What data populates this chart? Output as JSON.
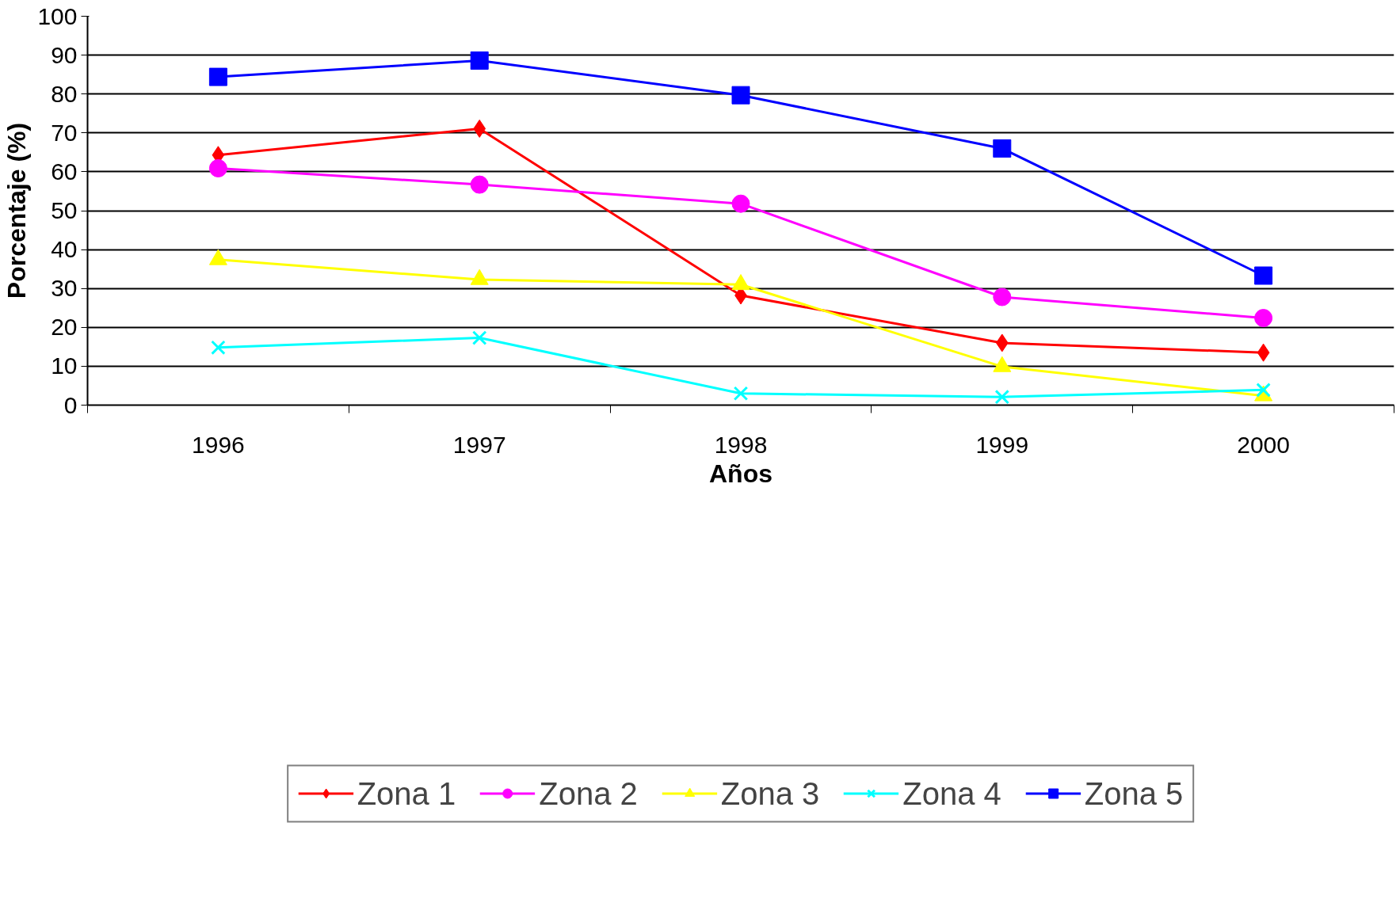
{
  "chart_data": {
    "type": "line",
    "xlabel": "Años",
    "ylabel": "Porcentaje (%)",
    "categories": [
      "1996",
      "1997",
      "1998",
      "1999",
      "2000"
    ],
    "series": [
      {
        "name": "Zona 1",
        "color": "#ff0000",
        "marker": "diamond",
        "values": [
          64.3,
          71.1,
          28.2,
          16.0,
          13.5
        ]
      },
      {
        "name": "Zona 2",
        "color": "#ff00ff",
        "marker": "circle",
        "values": [
          60.9,
          56.7,
          51.8,
          27.8,
          22.4
        ]
      },
      {
        "name": "Zona 3",
        "color": "#ffff00",
        "marker": "triangle",
        "values": [
          37.4,
          32.3,
          31.0,
          9.9,
          2.4
        ]
      },
      {
        "name": "Zona 4",
        "color": "#00ffff",
        "marker": "cross",
        "values": [
          14.8,
          17.3,
          3.0,
          2.1,
          3.9
        ]
      },
      {
        "name": "Zona 5",
        "color": "#0000ff",
        "marker": "square",
        "values": [
          84.4,
          88.6,
          79.7,
          66.0,
          33.3
        ]
      }
    ],
    "ylim": [
      0,
      100
    ],
    "yticks": [
      0,
      10,
      20,
      30,
      40,
      50,
      60,
      70,
      80,
      90,
      100
    ],
    "grid": "y",
    "legend": "bottom",
    "line_style": "solid"
  }
}
